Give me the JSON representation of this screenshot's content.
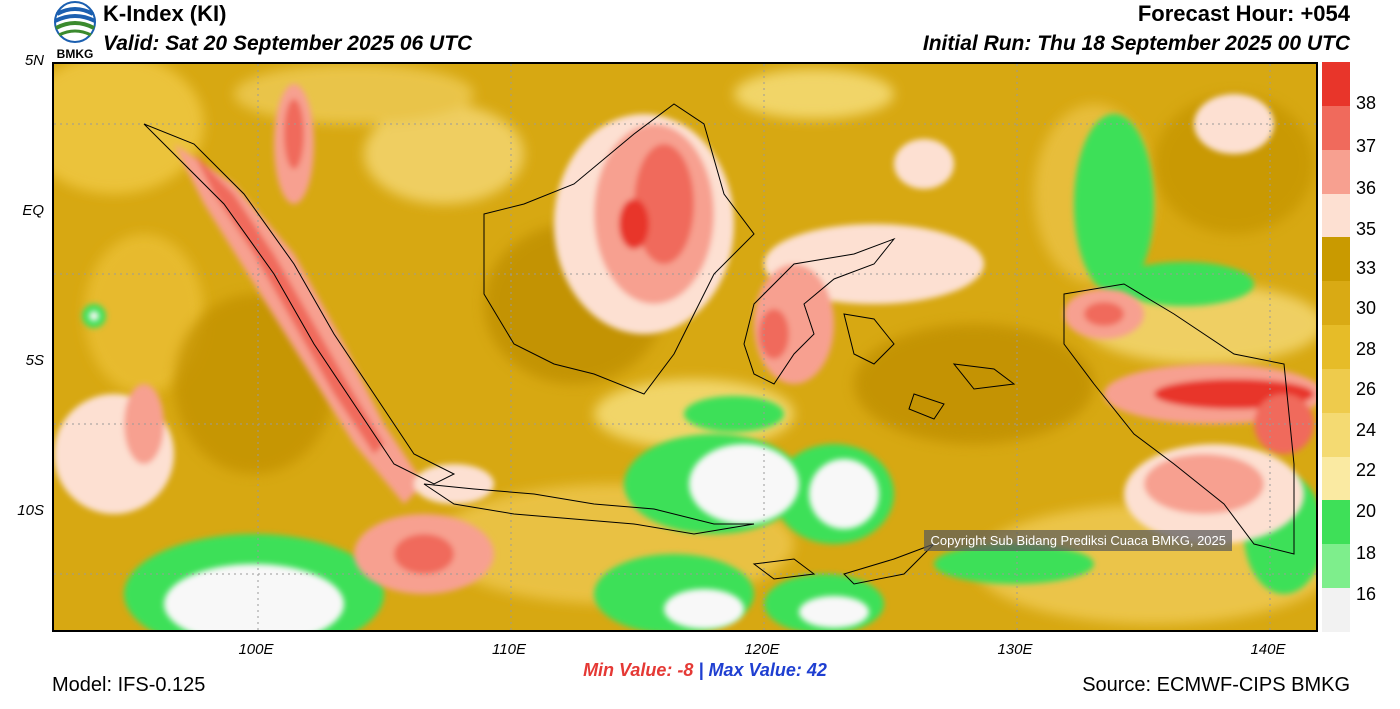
{
  "header": {
    "title": "K-Index (KI)",
    "valid": "Valid: Sat 20 September 2025 06 UTC",
    "forecast_hour": "Forecast Hour: +054",
    "initial_run": "Initial Run: Thu 18 September 2025 00 UTC"
  },
  "logo": {
    "text": "BMKG"
  },
  "map": {
    "lat_labels": [
      "5N",
      "EQ",
      "5S",
      "10S"
    ],
    "lon_labels": [
      "100E",
      "110E",
      "120E",
      "130E",
      "140E"
    ],
    "copyright": "Copyright Sub Bidang Prediksi Cuaca BMKG, 2025"
  },
  "colorbar": {
    "labels": [
      "38",
      "37",
      "36",
      "35",
      "33",
      "30",
      "28",
      "26",
      "24",
      "22",
      "20",
      "18",
      "16"
    ],
    "colors": [
      "#e8352a",
      "#f06a5c",
      "#f7a090",
      "#fde0d2",
      "#c99a00",
      "#d9aa14",
      "#e6bc28",
      "#eecb4c",
      "#f4da72",
      "#faeaa2",
      "#3ee058",
      "#7eee8c",
      "#f2f2f2"
    ]
  },
  "stats": {
    "min_label": "Min Value:",
    "min_value": "-8",
    "separator": "|",
    "max_label": "Max Value:",
    "max_value": "42"
  },
  "footer": {
    "model": "Model: IFS-0.125",
    "source": "Source: ECMWF-CIPS BMKG"
  }
}
